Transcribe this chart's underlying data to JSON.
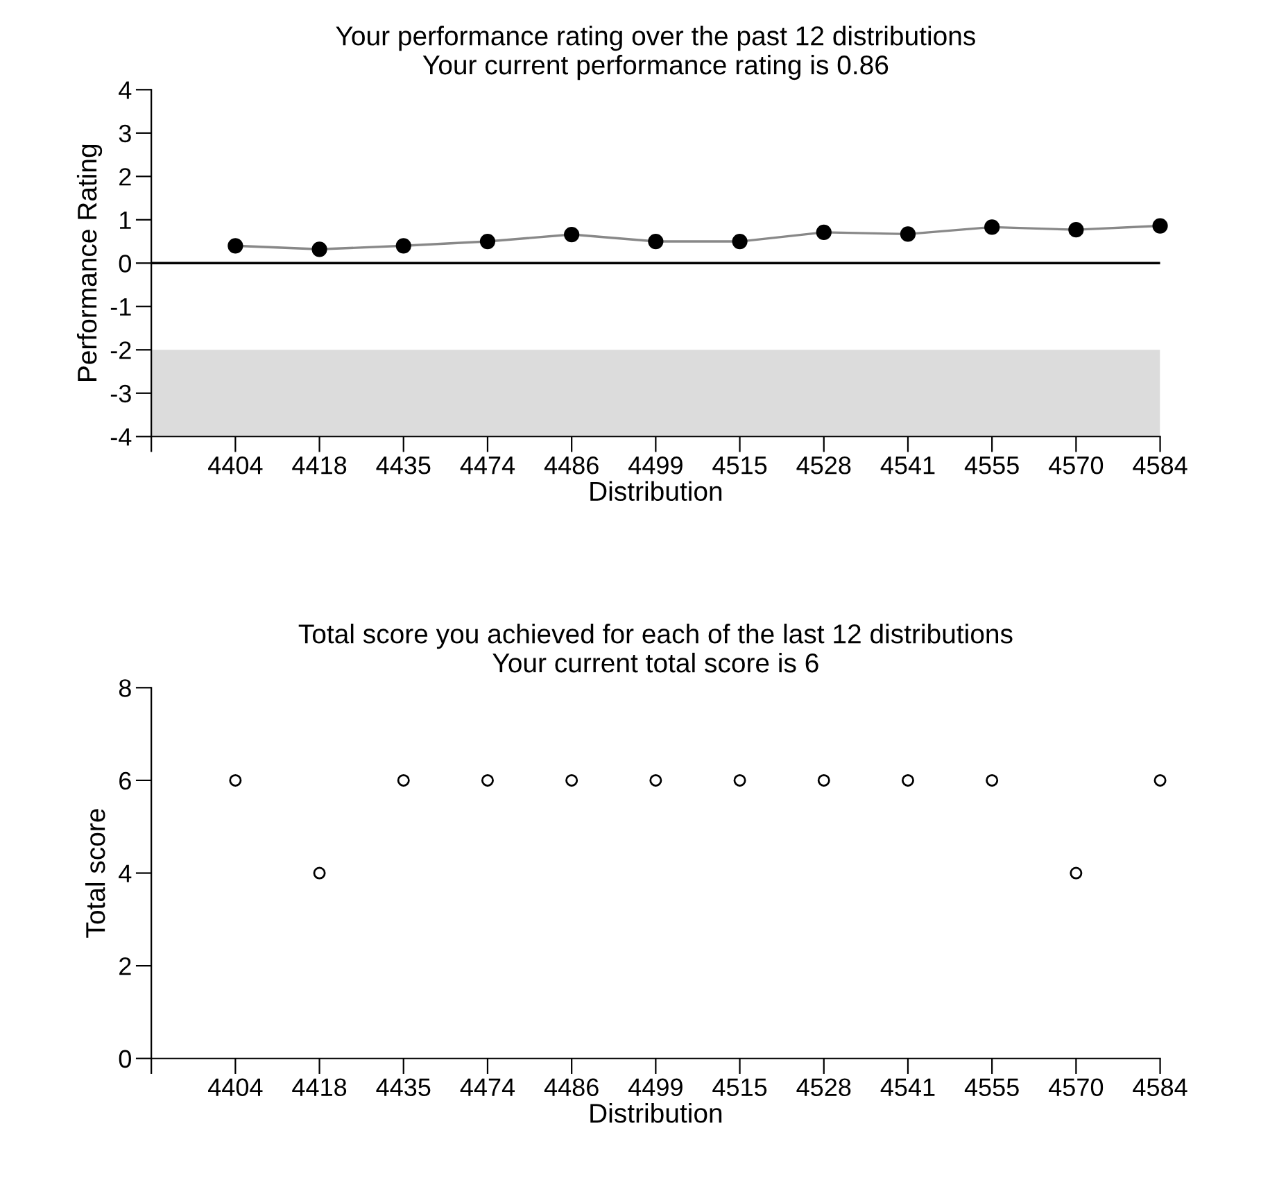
{
  "chart_data": [
    {
      "type": "line",
      "title": "Your performance rating over the past 12 distributions\nYour current performance rating is 0.86",
      "xlabel": "Distribution",
      "ylabel": "Performance Rating",
      "categories": [
        "4404",
        "4418",
        "4435",
        "4474",
        "4486",
        "4499",
        "4515",
        "4528",
        "4541",
        "4555",
        "4570",
        "4584"
      ],
      "series": [
        {
          "color": "#000000",
          "values": [
            0.4,
            0.32,
            0.4,
            0.5,
            0.66,
            0.5,
            0.5,
            0.71,
            0.67,
            0.83,
            0.77,
            0.86
          ]
        }
      ],
      "marker": "circle",
      "line_style": "solid",
      "ylim": [
        -4,
        4
      ],
      "yticks": [
        -4,
        -3,
        -2,
        -1,
        0,
        1,
        2,
        3,
        4
      ],
      "ref_lines": [
        {
          "axis": "y",
          "value": 0,
          "color": "#000000"
        }
      ],
      "bands": [
        {
          "axis": "y",
          "from": -4,
          "to": -2,
          "color": "#dcdcdc"
        }
      ],
      "grid": false,
      "legend": false
    },
    {
      "type": "scatter",
      "title": "Total score you achieved for each of the last 12 distributions\nYour current total score is 6",
      "xlabel": "Distribution",
      "ylabel": "Total score",
      "categories": [
        "4404",
        "4418",
        "4435",
        "4474",
        "4486",
        "4499",
        "4515",
        "4528",
        "4541",
        "4555",
        "4570",
        "4584"
      ],
      "series": [
        {
          "color": "#000000",
          "values": [
            6,
            4,
            6,
            6,
            6,
            6,
            6,
            6,
            6,
            6,
            4,
            6
          ]
        }
      ],
      "marker": "circle",
      "ylim": [
        0,
        8
      ],
      "yticks": [
        0,
        2,
        4,
        6,
        8
      ],
      "grid": false,
      "legend": false
    }
  ]
}
